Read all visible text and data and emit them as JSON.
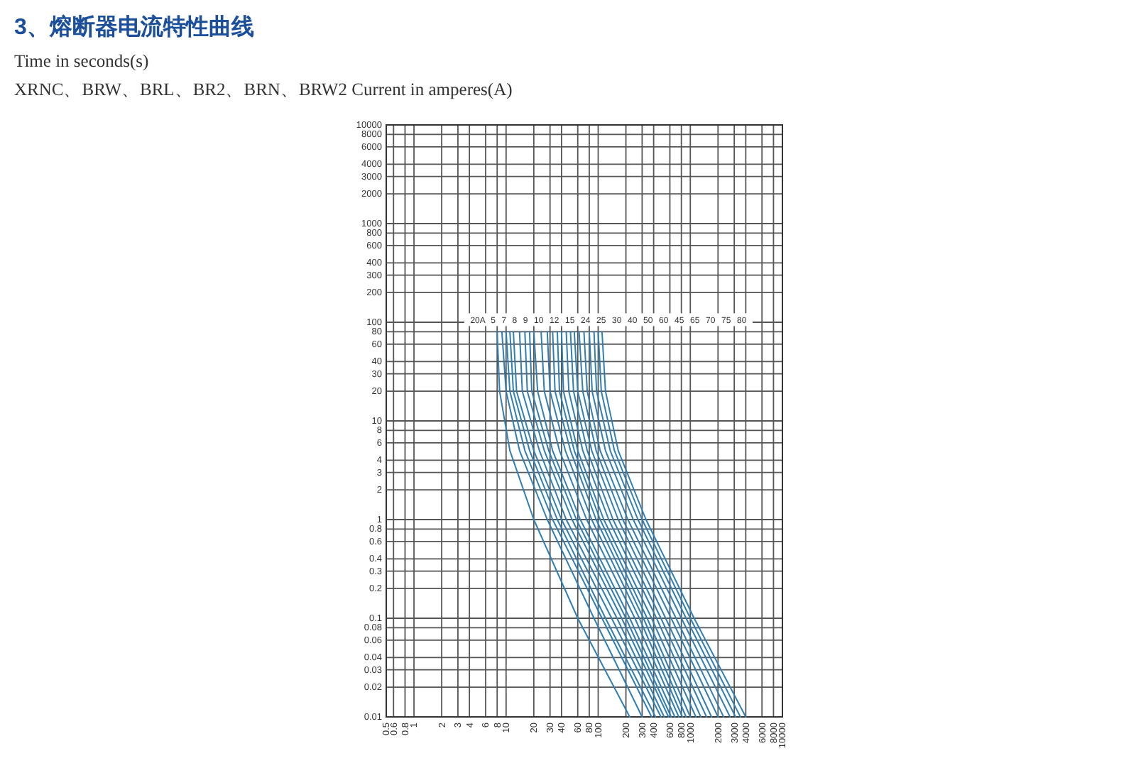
{
  "chart_data": {
    "type": "line",
    "title": "3、熔断器电流特性曲线",
    "subtitle": "Time in seconds(s)",
    "xlabel": "XRNC、BRW、BRL、BR2、BRN、BRW2   Current in amperes(A)",
    "log": "xy",
    "grid": true,
    "marker": "none",
    "xlim": [
      0.5,
      10000
    ],
    "ylim": [
      0.01,
      10000
    ],
    "xticks": [
      0.5,
      0.6,
      0.8,
      1,
      2,
      3,
      4,
      6,
      8,
      10,
      20,
      30,
      40,
      60,
      80,
      100,
      200,
      300,
      400,
      600,
      800,
      1000,
      2000,
      3000,
      4000,
      6000,
      8000,
      10000
    ],
    "yticks": [
      0.01,
      0.02,
      0.03,
      0.04,
      0.06,
      0.08,
      0.1,
      0.2,
      0.3,
      0.4,
      0.6,
      0.8,
      1,
      2,
      3,
      4,
      6,
      8,
      10,
      20,
      30,
      40,
      60,
      80,
      100,
      200,
      300,
      400,
      600,
      800,
      1000,
      2000,
      3000,
      4000,
      6000,
      8000,
      10000
    ],
    "series": [
      {
        "color": "#2f7fb5",
        "x": [
          8,
          8.5,
          11,
          20,
          60,
          220
        ],
        "values": [
          80,
          20,
          5,
          1,
          0.1,
          0.01
        ]
      },
      {
        "color": "#2f7fb5",
        "x": [
          9,
          10,
          14,
          28,
          90,
          300
        ],
        "values": [
          80,
          20,
          5,
          1,
          0.1,
          0.01
        ]
      },
      {
        "color": "#2f7fb5",
        "x": [
          10,
          11,
          16,
          32,
          110,
          380
        ],
        "values": [
          80,
          20,
          5,
          1,
          0.1,
          0.01
        ]
      },
      {
        "color": "#2f7fb5",
        "x": [
          11,
          12,
          18,
          36,
          120,
          420
        ],
        "values": [
          80,
          20,
          5,
          1,
          0.1,
          0.01
        ]
      },
      {
        "color": "#2f7fb5",
        "x": [
          12,
          13,
          20,
          40,
          140,
          480
        ],
        "values": [
          80,
          20,
          5,
          1,
          0.1,
          0.01
        ]
      },
      {
        "color": "#2f7fb5",
        "x": [
          14,
          15,
          23,
          45,
          160,
          520
        ],
        "values": [
          80,
          20,
          5,
          1,
          0.1,
          0.01
        ]
      },
      {
        "color": "#2f7fb5",
        "x": [
          16,
          17,
          26,
          52,
          180,
          580
        ],
        "values": [
          80,
          20,
          5,
          1,
          0.1,
          0.01
        ]
      },
      {
        "color": "#2f7fb5",
        "x": [
          18,
          19,
          29,
          58,
          200,
          620
        ],
        "values": [
          80,
          20,
          5,
          1,
          0.1,
          0.01
        ]
      },
      {
        "color": "#2f7fb5",
        "x": [
          20,
          22,
          32,
          64,
          220,
          680
        ],
        "values": [
          80,
          20,
          5,
          1,
          0.1,
          0.01
        ]
      },
      {
        "color": "#2f7fb5",
        "x": [
          24,
          26,
          38,
          75,
          250,
          750
        ],
        "values": [
          80,
          20,
          5,
          1,
          0.1,
          0.01
        ]
      },
      {
        "color": "#2f7fb5",
        "x": [
          28,
          30,
          44,
          85,
          280,
          820
        ],
        "values": [
          80,
          20,
          5,
          1,
          0.1,
          0.01
        ]
      },
      {
        "color": "#2f7fb5",
        "x": [
          32,
          34,
          50,
          95,
          310,
          900
        ],
        "values": [
          80,
          20,
          5,
          1,
          0.1,
          0.01
        ]
      },
      {
        "color": "#2f7fb5",
        "x": [
          36,
          38,
          55,
          105,
          340,
          1000
        ],
        "values": [
          80,
          20,
          5,
          1,
          0.1,
          0.01
        ]
      },
      {
        "color": "#2f7fb5",
        "x": [
          40,
          42,
          60,
          115,
          380,
          1150
        ],
        "values": [
          80,
          20,
          5,
          1,
          0.1,
          0.01
        ]
      },
      {
        "color": "#2f7fb5",
        "x": [
          45,
          48,
          68,
          130,
          430,
          1300
        ],
        "values": [
          80,
          20,
          5,
          1,
          0.1,
          0.01
        ]
      },
      {
        "color": "#2f7fb5",
        "x": [
          50,
          54,
          76,
          145,
          480,
          1500
        ],
        "values": [
          80,
          20,
          5,
          1,
          0.1,
          0.01
        ]
      },
      {
        "color": "#2f7fb5",
        "x": [
          55,
          60,
          85,
          165,
          540,
          1700
        ],
        "values": [
          80,
          20,
          5,
          1,
          0.1,
          0.01
        ]
      },
      {
        "color": "#2f7fb5",
        "x": [
          62,
          68,
          95,
          185,
          620,
          2000
        ],
        "values": [
          80,
          20,
          5,
          1,
          0.1,
          0.01
        ]
      },
      {
        "color": "#2f7fb5",
        "x": [
          70,
          76,
          105,
          210,
          700,
          2300
        ],
        "values": [
          80,
          20,
          5,
          1,
          0.1,
          0.01
        ]
      },
      {
        "color": "#2f7fb5",
        "x": [
          80,
          86,
          120,
          240,
          800,
          2700
        ],
        "values": [
          80,
          20,
          5,
          1,
          0.1,
          0.01
        ]
      },
      {
        "color": "#2f7fb5",
        "x": [
          90,
          96,
          135,
          270,
          900,
          3100
        ],
        "values": [
          80,
          20,
          5,
          1,
          0.1,
          0.01
        ]
      },
      {
        "color": "#2f7fb5",
        "x": [
          100,
          108,
          150,
          300,
          1000,
          3500
        ],
        "values": [
          80,
          20,
          5,
          1,
          0.1,
          0.01
        ]
      },
      {
        "color": "#2f7fb5",
        "x": [
          110,
          120,
          165,
          330,
          1100,
          4000
        ],
        "values": [
          80,
          20,
          5,
          1,
          0.1,
          0.01
        ]
      }
    ],
    "annotations": [
      "20A",
      "5",
      "7",
      "8",
      "9",
      "10",
      "12",
      "15",
      "24",
      "25",
      "30",
      "40",
      "50",
      "60",
      "45",
      "65",
      "70",
      "75",
      "80"
    ]
  }
}
